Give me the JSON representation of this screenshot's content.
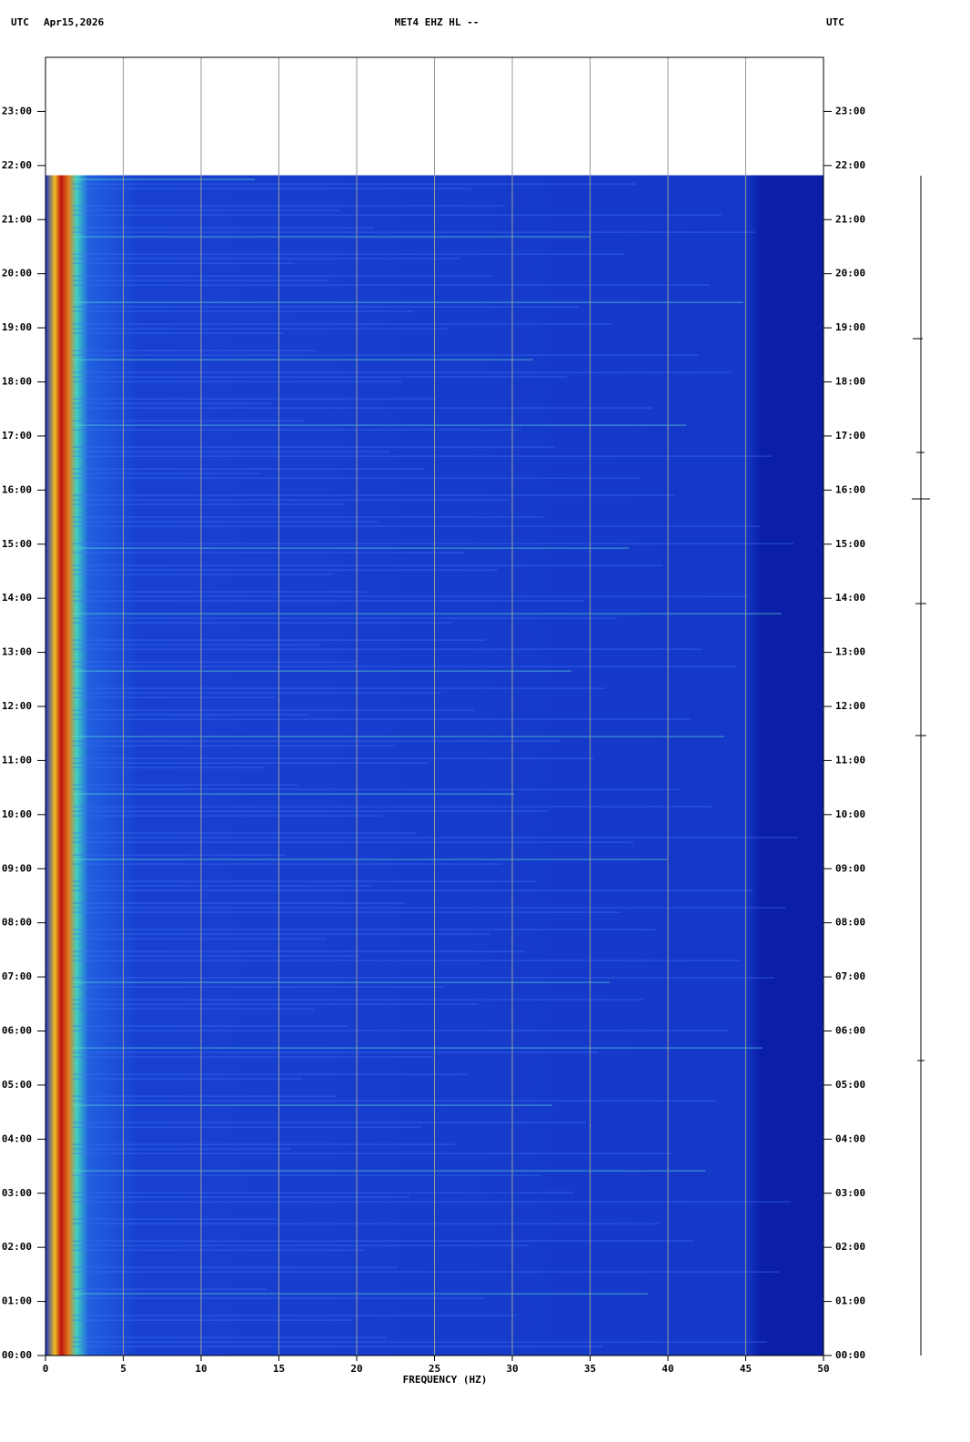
{
  "chart_data": {
    "type": "spectrogram",
    "header_left": "UTC",
    "date": "Apr15,2026",
    "title": "MET4 EHZ HL --",
    "header_right": "UTC",
    "xlabel": "FREQUENCY (HZ)",
    "xlim": [
      0,
      50
    ],
    "xticks": [
      0,
      5,
      10,
      15,
      20,
      25,
      30,
      35,
      40,
      45,
      50
    ],
    "ylim": [
      0,
      24
    ],
    "data_ylim": [
      0,
      21.82
    ],
    "yticks": [
      {
        "value": 0,
        "label": "00:00"
      },
      {
        "value": 1,
        "label": "01:00"
      },
      {
        "value": 2,
        "label": "02:00"
      },
      {
        "value": 3,
        "label": "03:00"
      },
      {
        "value": 4,
        "label": "04:00"
      },
      {
        "value": 5,
        "label": "05:00"
      },
      {
        "value": 6,
        "label": "06:00"
      },
      {
        "value": 7,
        "label": "07:00"
      },
      {
        "value": 8,
        "label": "08:00"
      },
      {
        "value": 9,
        "label": "09:00"
      },
      {
        "value": 10,
        "label": "10:00"
      },
      {
        "value": 11,
        "label": "11:00"
      },
      {
        "value": 12,
        "label": "12:00"
      },
      {
        "value": 13,
        "label": "13:00"
      },
      {
        "value": 14,
        "label": "14:00"
      },
      {
        "value": 15,
        "label": "15:00"
      },
      {
        "value": 16,
        "label": "16:00"
      },
      {
        "value": 17,
        "label": "17:00"
      },
      {
        "value": 18,
        "label": "18:00"
      },
      {
        "value": 19,
        "label": "19:00"
      },
      {
        "value": 20,
        "label": "20:00"
      },
      {
        "value": 21,
        "label": "21:00"
      },
      {
        "value": 22,
        "label": "22:00"
      },
      {
        "value": 23,
        "label": "23:00"
      }
    ],
    "grid": true,
    "grid_color": "#999999"
  }
}
